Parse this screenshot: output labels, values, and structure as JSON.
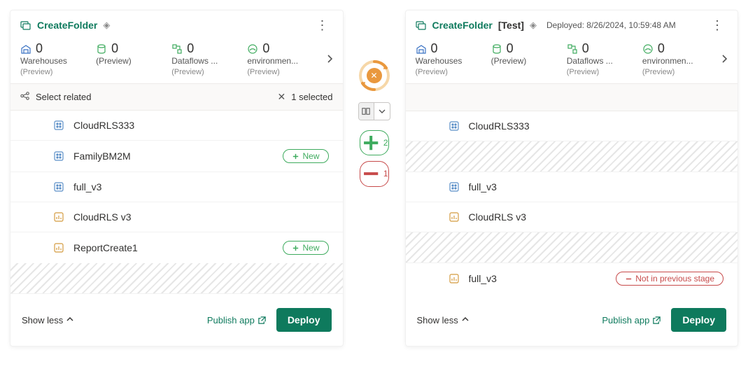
{
  "colors": {
    "accent": "#0e7a5d",
    "green": "#3eab5e",
    "red": "#c74a4a",
    "orange": "#e9983e",
    "hatch": "#e6e6e6"
  },
  "mid": {
    "add_count": "2",
    "remove_count": "1"
  },
  "left": {
    "title": "CreateFolder",
    "metrics": [
      {
        "value": "0",
        "label": "Warehouses",
        "sub": "(Preview)",
        "icon": "warehouse"
      },
      {
        "value": "0",
        "label": "(Preview)",
        "sub": "",
        "icon": "db"
      },
      {
        "value": "0",
        "label": "Dataflows ...",
        "sub": "(Preview)",
        "icon": "flow"
      },
      {
        "value": "0",
        "label": "environmen...",
        "sub": "(Preview)",
        "icon": "env"
      }
    ],
    "select_related": "Select related",
    "selected_text": "1 selected",
    "items": [
      {
        "name": "CloudRLS333",
        "icon": "model",
        "badge": null
      },
      {
        "name": "FamilyBM2M",
        "icon": "model",
        "badge": "New"
      },
      {
        "name": "full_v3",
        "icon": "model",
        "badge": null
      },
      {
        "name": "CloudRLS v3",
        "icon": "report",
        "badge": null
      },
      {
        "name": "ReportCreate1",
        "icon": "report",
        "badge": "New"
      }
    ],
    "show_less": "Show less",
    "publish": "Publish app",
    "deploy": "Deploy"
  },
  "right": {
    "title": "CreateFolder",
    "tag": "[Test]",
    "deployed": "Deployed: 8/26/2024, 10:59:48 AM",
    "metrics": [
      {
        "value": "0",
        "label": "Warehouses",
        "sub": "(Preview)",
        "icon": "warehouse"
      },
      {
        "value": "0",
        "label": "(Preview)",
        "sub": "",
        "icon": "db"
      },
      {
        "value": "0",
        "label": "Dataflows ...",
        "sub": "(Preview)",
        "icon": "flow"
      },
      {
        "value": "0",
        "label": "environmen...",
        "sub": "(Preview)",
        "icon": "env"
      }
    ],
    "rows": [
      {
        "type": "item",
        "name": "CloudRLS333",
        "icon": "model",
        "badge": null
      },
      {
        "type": "hatched"
      },
      {
        "type": "item",
        "name": "full_v3",
        "icon": "model",
        "badge": null
      },
      {
        "type": "item",
        "name": "CloudRLS v3",
        "icon": "report",
        "badge": null
      },
      {
        "type": "hatched"
      },
      {
        "type": "item",
        "name": "full_v3",
        "icon": "report",
        "badge": "Not in previous stage",
        "badge_style": "red"
      }
    ],
    "show_less": "Show less",
    "publish": "Publish app",
    "deploy": "Deploy"
  }
}
